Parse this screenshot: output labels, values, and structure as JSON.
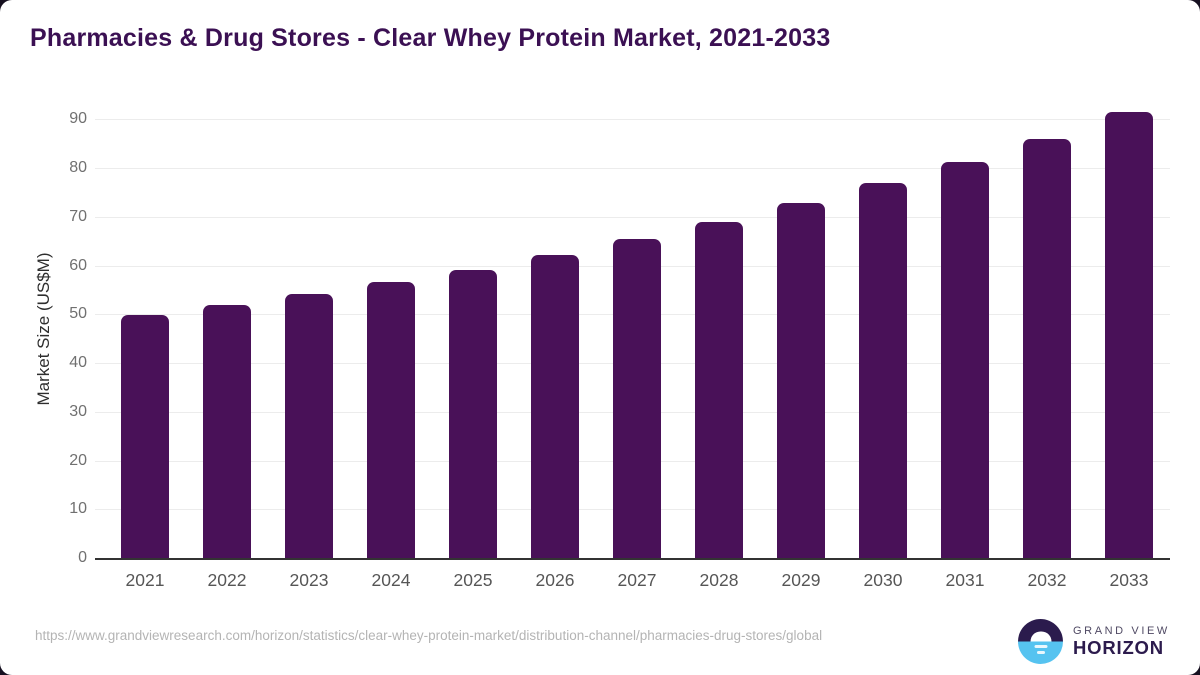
{
  "title": "Pharmacies & Drug Stores - Clear Whey Protein Market, 2021-2033",
  "chart_data": {
    "type": "bar",
    "categories": [
      "2021",
      "2022",
      "2023",
      "2024",
      "2025",
      "2026",
      "2027",
      "2028",
      "2029",
      "2030",
      "2031",
      "2032",
      "2033"
    ],
    "values": [
      49.8,
      52.0,
      54.2,
      56.6,
      59.2,
      62.1,
      65.4,
      68.9,
      72.8,
      76.9,
      81.2,
      86.0,
      91.6
    ],
    "title": "Pharmacies & Drug Stores - Clear Whey Protein Market, 2021-2033",
    "xlabel": "",
    "ylabel": "Market Size (US$M)",
    "ylim": [
      0,
      94
    ],
    "yticks": [
      0,
      10,
      20,
      30,
      40,
      50,
      60,
      70,
      80,
      90
    ],
    "grid": true,
    "legend": "none",
    "bar_color": "#491158"
  },
  "footer": {
    "source_url": "https://www.grandviewresearch.com/horizon/statistics/clear-whey-protein-market/distribution-channel/pharmacies-drug-stores/global"
  },
  "logo": {
    "line1": "GRAND VIEW",
    "line2": "HORIZON"
  },
  "colors": {
    "title": "#3b1053",
    "bar": "#491158",
    "gridline": "#ececec",
    "axis": "#333333",
    "tick_label": "#565656",
    "footer_text": "#b4b4b4",
    "logo_dark": "#2b1b4d",
    "logo_blue": "#56c3f0"
  }
}
